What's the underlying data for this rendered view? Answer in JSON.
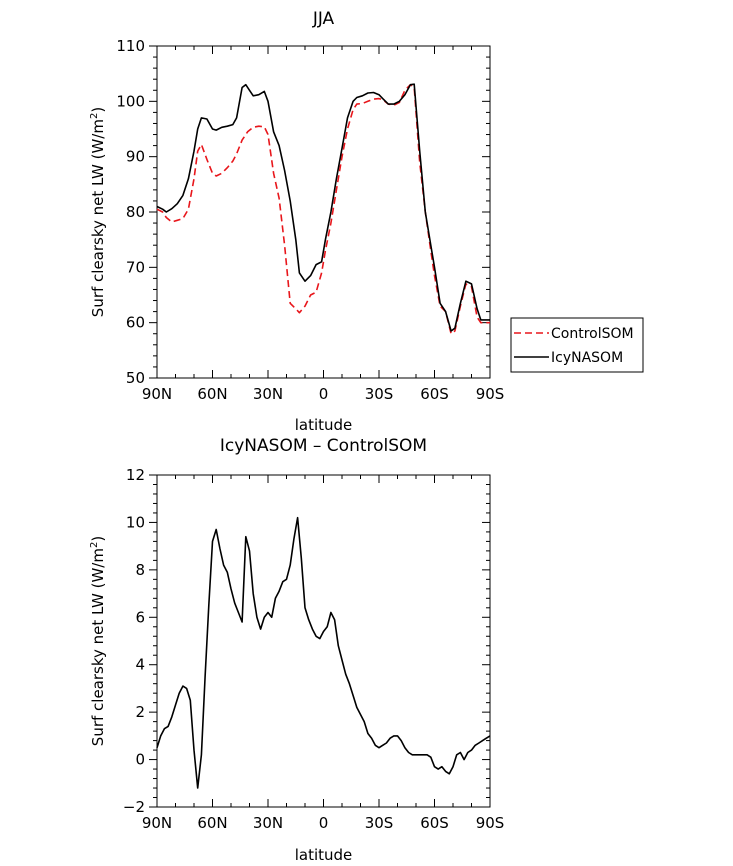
{
  "chart_data": [
    {
      "type": "line",
      "title": "JJA",
      "xlabel": "latitude",
      "ylabel": "Surf clearsky net LW (W/m",
      "ylabel_sup": "2",
      "ylabel_tail": ")",
      "xlim": [
        90,
        -90
      ],
      "ylim": [
        50,
        110
      ],
      "xticks": [
        90,
        60,
        30,
        0,
        -30,
        -60,
        -90
      ],
      "xticklabels": [
        "90N",
        "60N",
        "30N",
        "0",
        "30S",
        "60S",
        "90S"
      ],
      "yticks": [
        50,
        60,
        70,
        80,
        90,
        100,
        110
      ],
      "yticklabels": [
        "50",
        "60",
        "70",
        "80",
        "90",
        "100",
        "110"
      ],
      "legend_position": "right",
      "series": [
        {
          "name": "ControlSOM",
          "color": "#e8161b",
          "dash": "dashed",
          "x": [
            90,
            87,
            85,
            82,
            79,
            76,
            73,
            70,
            68,
            66,
            63,
            60,
            58,
            55,
            52,
            49,
            47,
            44,
            41,
            38,
            35,
            32,
            30,
            27,
            24,
            21,
            18,
            15,
            13,
            10,
            7,
            4,
            1,
            -1,
            -4,
            -7,
            -10,
            -13,
            -16,
            -18,
            -21,
            -24,
            -27,
            -30,
            -32,
            -35,
            -38,
            -41,
            -44,
            -47,
            -49,
            -52,
            -55,
            -58,
            -60,
            -63,
            -66,
            -69,
            -71,
            -74,
            -77,
            -80,
            -83,
            -85,
            -88,
            -90
          ],
          "y": [
            80.5,
            80,
            79,
            78.2,
            78.5,
            78.8,
            80.5,
            86,
            91,
            92.2,
            89.5,
            87,
            86.5,
            87,
            88,
            89.2,
            90.5,
            93,
            94.5,
            95.3,
            95.5,
            95.4,
            94,
            87,
            82.5,
            74,
            63.5,
            62.5,
            61.8,
            63,
            65,
            65.5,
            69,
            73,
            78,
            84,
            90,
            95,
            98.5,
            99.5,
            99.6,
            100,
            100.4,
            100.5,
            100.3,
            99.5,
            99.3,
            99.8,
            102,
            103,
            102.5,
            89,
            80,
            73,
            68.5,
            63,
            62,
            58,
            58.5,
            63,
            67,
            66.5,
            61,
            60,
            60,
            60
          ]
        },
        {
          "name": "IcyNASOM",
          "color": "#000000",
          "dash": "solid",
          "x": [
            90,
            87,
            85,
            82,
            79,
            76,
            73,
            70,
            68,
            66,
            63,
            60,
            58,
            55,
            52,
            49,
            47,
            44,
            42,
            40,
            38,
            35,
            32,
            30,
            27,
            24,
            21,
            18,
            15,
            13,
            10,
            7,
            4,
            1,
            -1,
            -4,
            -7,
            -10,
            -13,
            -16,
            -18,
            -21,
            -24,
            -27,
            -30,
            -32,
            -35,
            -38,
            -41,
            -44,
            -47,
            -49,
            -52,
            -55,
            -58,
            -60,
            -63,
            -66,
            -69,
            -71,
            -74,
            -77,
            -80,
            -83,
            -85,
            -88,
            -90
          ],
          "y": [
            81,
            80.5,
            80,
            80.6,
            81.5,
            83,
            86,
            91,
            95,
            97,
            96.8,
            95,
            94.8,
            95.3,
            95.5,
            95.8,
            97,
            102.5,
            103,
            102,
            101,
            101.2,
            101.8,
            100,
            94.5,
            92,
            87.5,
            82,
            75,
            69,
            67.5,
            68.5,
            70.5,
            71,
            75,
            80,
            86,
            91.5,
            97,
            100,
            100.7,
            101,
            101.5,
            101.6,
            101.2,
            100.5,
            99.5,
            99.5,
            100,
            101.2,
            103,
            103.1,
            91,
            80,
            74,
            70,
            63.5,
            62,
            58.5,
            59,
            63.5,
            67.5,
            67,
            62.5,
            60.5,
            60.5,
            60.5
          ]
        }
      ]
    },
    {
      "type": "line",
      "title": "IcyNASOM – ControlSOM",
      "xlabel": "latitude",
      "ylabel": "Surf clearsky net LW (W/m",
      "ylabel_sup": "2",
      "ylabel_tail": ")",
      "xlim": [
        90,
        -90
      ],
      "ylim": [
        -2,
        12
      ],
      "xticks": [
        90,
        60,
        30,
        0,
        -30,
        -60,
        -90
      ],
      "xticklabels": [
        "90N",
        "60N",
        "30N",
        "0",
        "30S",
        "60S",
        "90S"
      ],
      "yticks": [
        -2,
        0,
        2,
        4,
        6,
        8,
        10,
        12
      ],
      "yticklabels": [
        "−2",
        "0",
        "2",
        "4",
        "6",
        "8",
        "10",
        "12"
      ],
      "series": [
        {
          "color": "#000000",
          "dash": "solid",
          "x": [
            90,
            88,
            86,
            84,
            82,
            80,
            78,
            76,
            74,
            72,
            70,
            68,
            66,
            64,
            62,
            60,
            58,
            56,
            54,
            52,
            50,
            48,
            46,
            44,
            42,
            40,
            38,
            36,
            34,
            32,
            30,
            28,
            26,
            24,
            22,
            20,
            18,
            16,
            14,
            12,
            10,
            8,
            6,
            4,
            2,
            0,
            -2,
            -4,
            -6,
            -8,
            -10,
            -12,
            -14,
            -16,
            -18,
            -20,
            -22,
            -24,
            -26,
            -28,
            -30,
            -32,
            -34,
            -36,
            -38,
            -40,
            -42,
            -44,
            -46,
            -48,
            -50,
            -52,
            -54,
            -56,
            -58,
            -60,
            -62,
            -64,
            -66,
            -68,
            -70,
            -72,
            -74,
            -76,
            -78,
            -80,
            -82,
            -84,
            -86,
            -88,
            -90
          ],
          "y": [
            0.5,
            1.0,
            1.3,
            1.4,
            1.8,
            2.3,
            2.8,
            3.1,
            3.0,
            2.5,
            0.4,
            -1.2,
            0.2,
            3.5,
            6.5,
            9.2,
            9.7,
            8.9,
            8.2,
            7.9,
            7.2,
            6.6,
            6.2,
            5.8,
            9.4,
            8.8,
            7.0,
            6.0,
            5.5,
            6.0,
            6.2,
            6.0,
            6.8,
            7.1,
            7.5,
            7.6,
            8.2,
            9.3,
            10.2,
            8.5,
            6.4,
            5.9,
            5.5,
            5.2,
            5.1,
            5.4,
            5.6,
            6.2,
            5.9,
            4.8,
            4.2,
            3.6,
            3.2,
            2.7,
            2.2,
            1.9,
            1.6,
            1.1,
            0.9,
            0.6,
            0.5,
            0.6,
            0.7,
            0.9,
            1.0,
            1.0,
            0.8,
            0.5,
            0.3,
            0.2,
            0.2,
            0.2,
            0.2,
            0.2,
            0.1,
            -0.3,
            -0.4,
            -0.3,
            -0.5,
            -0.6,
            -0.3,
            0.2,
            0.3,
            0.0,
            0.3,
            0.4,
            0.6,
            0.7,
            0.8,
            0.9,
            1.0
          ]
        }
      ]
    }
  ]
}
